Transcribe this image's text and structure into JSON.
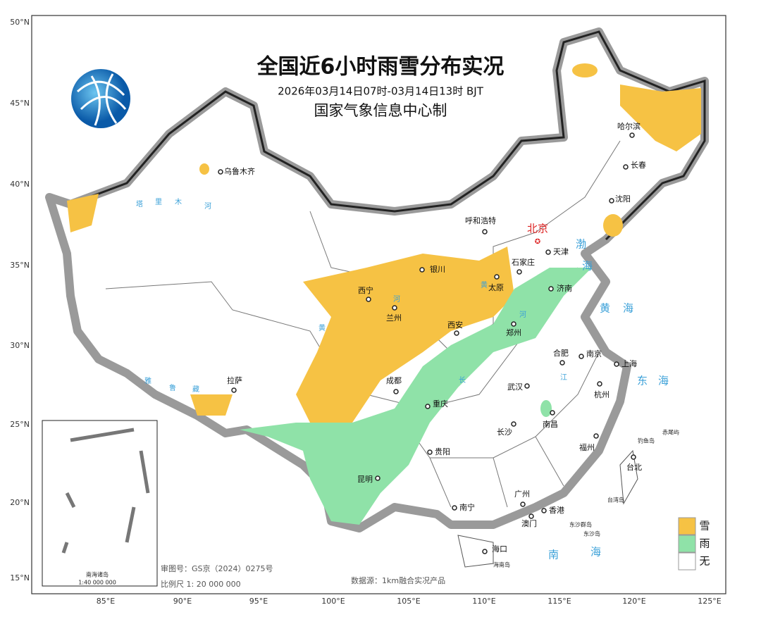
{
  "header": {
    "title": "全国近6小时雨雪分布实况",
    "period": "2026年03月14日07时-03月14日13时 BJT",
    "issuer": "国家气象信息中心制"
  },
  "axes": {
    "lat_labels": [
      "50°N",
      "45°N",
      "40°N",
      "35°N",
      "30°N",
      "25°N",
      "20°N",
      "15°N"
    ],
    "lon_labels": [
      "85°E",
      "90°E",
      "95°E",
      "100°E",
      "105°E",
      "110°E",
      "115°E",
      "120°E",
      "125°E"
    ]
  },
  "capital": "北京",
  "cities": [
    "乌鲁木齐",
    "哈尔滨",
    "长春",
    "沈阳",
    "呼和浩特",
    "天津",
    "石家庄",
    "太原",
    "济南",
    "银川",
    "西宁",
    "兰州",
    "西安",
    "郑州",
    "合肥",
    "南京",
    "上海",
    "成都",
    "武汉",
    "杭州",
    "拉萨",
    "重庆",
    "长沙",
    "南昌",
    "贵阳",
    "福州",
    "台北",
    "昆明",
    "南宁",
    "广州",
    "香港",
    "澳门",
    "海口"
  ],
  "islands": [
    "海南岛",
    "钓鱼岛",
    "赤尾屿",
    "台湾岛",
    "东沙群岛",
    "东沙岛"
  ],
  "seas": [
    "渤",
    "海",
    "黄",
    "海",
    "东",
    "海",
    "南",
    "海"
  ],
  "rivers": [
    "塔",
    "里",
    "木",
    "河",
    "黄",
    "河",
    "黄",
    "河",
    "长",
    "江",
    "雅",
    "鲁",
    "藏"
  ],
  "legend": [
    "雪",
    "雨",
    "无"
  ],
  "inset": {
    "title": "南海诸岛",
    "scale": "1:40 000 000"
  },
  "footer": {
    "approval": "审图号：GS京（2024）0275号",
    "scale": "比例尺 1: 20 000 000",
    "source": "数据源：1km融合实况产品"
  }
}
